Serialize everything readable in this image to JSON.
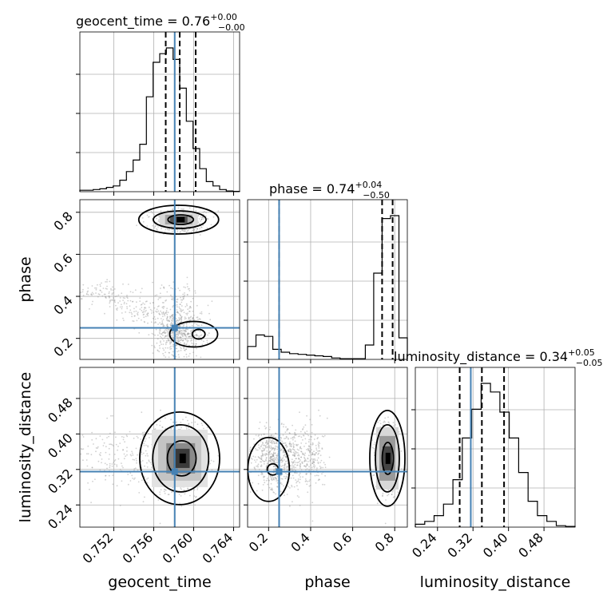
{
  "chart_data": {
    "type": "corner",
    "parameters": [
      "geocent_time",
      "phase",
      "luminosity_distance"
    ],
    "titles": {
      "geocent_time": {
        "name": "geocent_time",
        "median": "0.76",
        "upper": "+0.00",
        "lower": "−0.00"
      },
      "phase": {
        "name": "phase",
        "median": "0.74",
        "upper": "+0.04",
        "lower": "−0.50"
      },
      "luminosity_distance": {
        "name": "luminosity_distance",
        "median": "0.34",
        "upper": "+0.05",
        "lower": "−0.05"
      }
    },
    "truths": {
      "geocent_time": 0.7581,
      "phase": 0.25,
      "luminosity_distance": 0.315
    },
    "quantiles": {
      "geocent_time": [
        0.7572,
        0.7586,
        0.7602
      ],
      "phase": [
        0.25,
        0.74,
        0.79
      ],
      "luminosity_distance": [
        0.29,
        0.34,
        0.39
      ]
    },
    "ranges": {
      "geocent_time": [
        0.7486,
        0.7646
      ],
      "phase": [
        0.1,
        0.86
      ],
      "luminosity_distance": [
        0.19,
        0.55
      ]
    },
    "ticks": {
      "geocent_time": [
        "0.752",
        "0.756",
        "0.760",
        "0.764"
      ],
      "phase": [
        "0.2",
        "0.4",
        "0.6",
        "0.8"
      ],
      "luminosity_distance": [
        "0.24",
        "0.32",
        "0.40",
        "0.48"
      ]
    },
    "axis_labels": {
      "x": [
        "geocent_time",
        "phase",
        "luminosity_distance"
      ],
      "y": [
        "phase",
        "luminosity_distance"
      ]
    },
    "histograms": {
      "geocent_time": [
        0.01,
        0.01,
        0.015,
        0.02,
        0.03,
        0.04,
        0.08,
        0.14,
        0.22,
        0.33,
        0.66,
        0.9,
        0.96,
        1.0,
        0.92,
        0.72,
        0.49,
        0.3,
        0.16,
        0.07,
        0.04,
        0.015,
        0.005,
        0.002
      ],
      "phase": [
        0.09,
        0.17,
        0.16,
        0.07,
        0.05,
        0.04,
        0.035,
        0.03,
        0.025,
        0.02,
        0.01,
        0.005,
        0.005,
        0.005,
        0.1,
        0.6,
        0.98,
        1.0,
        0.15
      ],
      "luminosity_distance": [
        0.02,
        0.04,
        0.08,
        0.16,
        0.33,
        0.62,
        0.82,
        1.0,
        0.94,
        0.8,
        0.62,
        0.38,
        0.18,
        0.08,
        0.04,
        0.01,
        0.005
      ]
    },
    "grid": true
  }
}
